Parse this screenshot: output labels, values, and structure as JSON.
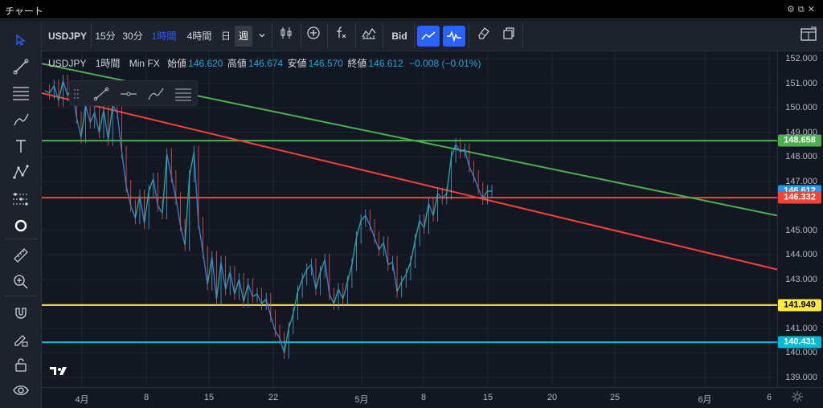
{
  "window": {
    "title": "チャート"
  },
  "toolbar": {
    "symbol": "USDJPY",
    "intervals": [
      "15分",
      "30分",
      "1時間",
      "4時間",
      "日",
      "週"
    ],
    "active_interval": "1時間",
    "bid_label": "Bid"
  },
  "legend": {
    "symbol": "USDJPY",
    "interval": "1時間",
    "source": "Min FX",
    "open_label": "始値",
    "open": "146.620",
    "high_label": "高値",
    "high": "146.674",
    "low_label": "安値",
    "low": "146.570",
    "close_label": "終値",
    "close": "146.612",
    "change": "−0.008 (−0.01%)"
  },
  "yaxis": {
    "ticks": [
      "152.000",
      "151.000",
      "150.000",
      "149.000",
      "148.000",
      "147.000",
      "145.000",
      "144.000",
      "143.000",
      "142.000",
      "141.000",
      "140.000",
      "139.000"
    ],
    "price_labels": [
      {
        "value": "148.658",
        "color": "#4caf50",
        "text_color": "#ffffff"
      },
      {
        "value": "146.612",
        "color": "#2196f3",
        "text_color": "#ffffff"
      },
      {
        "value": "146.332",
        "color": "#f44336",
        "text_color": "#ffffff"
      },
      {
        "value": "141.949",
        "color": "#ffeb3b",
        "text_color": "#000000"
      },
      {
        "value": "140.431",
        "color": "#00bcd4",
        "text_color": "#ffffff"
      }
    ]
  },
  "xaxis": {
    "ticks": [
      "4月",
      "8",
      "15",
      "22",
      "5月",
      "8",
      "15",
      "20",
      "25",
      "6月",
      "6"
    ]
  },
  "chart_data": {
    "type": "line",
    "ylim": [
      138.6,
      152.3
    ],
    "price_axis_ticks": [
      152,
      151,
      150,
      149,
      148,
      147,
      145,
      144,
      143,
      142,
      141,
      140,
      139
    ],
    "horizontal_lines": [
      {
        "name": "",
        "value": 148.658,
        "color": "#4caf50"
      },
      {
        "name": "",
        "value": 146.332,
        "color": "#f44336"
      },
      {
        "name": "",
        "value": 141.949,
        "color": "#ffeb3b"
      },
      {
        "name": "",
        "value": 140.431,
        "color": "#00bcd4"
      }
    ],
    "trend_lines": [
      {
        "color": "#4caf50",
        "start_price": 151.8,
        "end_price": 145.6
      },
      {
        "color": "#f44336",
        "start_price": 150.6,
        "end_price": 143.4
      }
    ],
    "price_path": [
      150.7,
      150.6,
      150.9,
      150.3,
      151.1,
      150.5,
      150.8,
      149.6,
      148.8,
      150.1,
      149.4,
      149.8,
      149.0,
      149.9,
      148.7,
      150.1,
      149.8,
      148.2,
      146.8,
      146.0,
      145.5,
      146.4,
      145.3,
      146.6,
      147.1,
      146.0,
      145.7,
      148.1,
      147.2,
      146.3,
      145.2,
      144.4,
      147.2,
      148.2,
      145.3,
      144.1,
      142.8,
      143.9,
      142.2,
      143.7,
      142.6,
      143.3,
      142.4,
      143.0,
      142.1,
      142.8,
      142.3,
      142.4,
      142.0,
      142.2,
      141.5,
      140.9,
      140.6,
      140.0,
      141.0,
      141.6,
      142.5,
      143.0,
      143.4,
      143.6,
      142.6,
      143.3,
      143.8,
      142.4,
      142.0,
      142.6,
      142.2,
      142.9,
      143.6,
      144.7,
      145.4,
      145.6,
      145.2,
      144.7,
      144.2,
      144.5,
      143.6,
      143.7,
      142.5,
      142.9,
      143.2,
      143.7,
      144.6,
      145.4,
      145.1,
      146.1,
      145.6,
      146.5,
      146.3,
      146.5,
      148.0,
      148.5,
      148.2,
      148.3,
      147.6,
      147.2,
      146.7,
      146.3,
      146.6,
      146.6
    ]
  },
  "colors": {
    "background": "#131722",
    "accent": "#2962ff",
    "up": "#26a69a",
    "down": "#ef5350"
  }
}
